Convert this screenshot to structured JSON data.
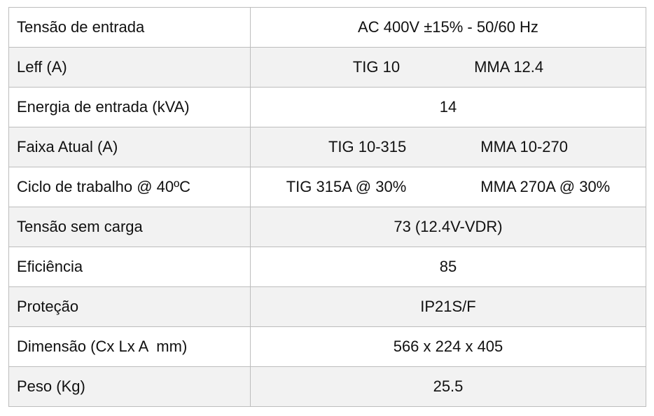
{
  "table": {
    "rows": [
      {
        "label": "Tensão de entrada",
        "values": [
          "AC 400V ±15% - 50/60 Hz"
        ]
      },
      {
        "label": "Leff (A)",
        "values": [
          "TIG 10",
          "MMA 12.4"
        ]
      },
      {
        "label": "Energia de entrada (kVA)",
        "values": [
          "14"
        ]
      },
      {
        "label": "Faixa Atual (A)",
        "values": [
          "TIG 10-315",
          "MMA 10-270"
        ]
      },
      {
        "label": "Ciclo de trabalho @ 40ºC",
        "values": [
          "TIG 315A @ 30%",
          "MMA 270A @ 30%"
        ]
      },
      {
        "label": "Tensão sem carga",
        "values": [
          "73 (12.4V-VDR)"
        ]
      },
      {
        "label": "Eficiência",
        "values": [
          "85"
        ]
      },
      {
        "label": "Proteção",
        "values": [
          "IP21S/F"
        ]
      },
      {
        "label": "Dimensão (Cx Lx A  mm)",
        "values": [
          "566 x 224 x 405"
        ]
      },
      {
        "label": "Peso (Kg)",
        "values": [
          "25.5"
        ]
      }
    ]
  }
}
